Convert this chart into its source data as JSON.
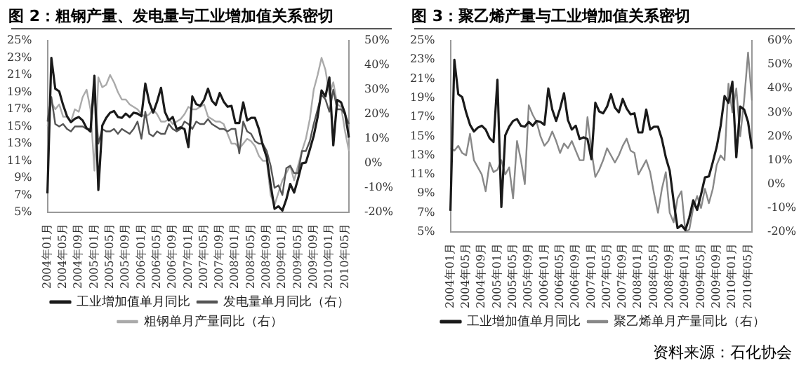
{
  "chart_data": [
    {
      "type": "line",
      "title": "图 2：粗钢产量、发电量与工业增加值关系密切",
      "legend": "bottom",
      "tick_labels": "all",
      "categories": [
        "2004年01月",
        null,
        null,
        null,
        "2004年05月",
        null,
        null,
        null,
        "2004年09月",
        null,
        null,
        null,
        "2005年01月",
        null,
        null,
        null,
        "2005年05月",
        null,
        null,
        null,
        "2005年09月",
        null,
        null,
        null,
        "2006年01月",
        null,
        null,
        null,
        "2006年05月",
        null,
        null,
        null,
        "2006年09月",
        null,
        null,
        null,
        "2007年01月",
        null,
        null,
        null,
        "2007年05月",
        null,
        null,
        null,
        "2007年09月",
        null,
        null,
        null,
        "2008年01月",
        null,
        null,
        null,
        "2008年05月",
        null,
        null,
        null,
        "2008年09月",
        null,
        null,
        null,
        "2009年01月",
        null,
        null,
        null,
        "2009年05月",
        null,
        null,
        null,
        "2009年09月",
        null,
        null,
        null,
        "2010年01月",
        null,
        null,
        null,
        "2010年05月",
        null
      ],
      "ylim": [
        5,
        25
      ],
      "yticks": [
        {
          "value": 5,
          "label": "5%"
        },
        {
          "value": 7,
          "label": "7%"
        },
        {
          "value": 9,
          "label": "9%"
        },
        {
          "value": 11,
          "label": "11%"
        },
        {
          "value": 13,
          "label": "13%"
        },
        {
          "value": 15,
          "label": "15%"
        },
        {
          "value": 17,
          "label": "17%"
        },
        {
          "value": 19,
          "label": "19%"
        },
        {
          "value": 21,
          "label": "21%"
        },
        {
          "value": 23,
          "label": "23%"
        },
        {
          "value": 25,
          "label": "25%"
        }
      ],
      "y2lim": [
        -20,
        50
      ],
      "y2ticks": [
        {
          "value": -20,
          "label": "-20%"
        },
        {
          "value": -10,
          "label": "-10%"
        },
        {
          "value": 0,
          "label": "0%"
        },
        {
          "value": 10,
          "label": "10%"
        },
        {
          "value": 20,
          "label": "20%"
        },
        {
          "value": 30,
          "label": "30%"
        },
        {
          "value": 40,
          "label": "40%"
        },
        {
          "value": 50,
          "label": "50%"
        }
      ],
      "series": [
        {
          "name": "工业增加值单月同比",
          "color": "#1a1a1a",
          "values": [
            7.2,
            23,
            19.4,
            19.1,
            17.5,
            16.2,
            15.5,
            15.9,
            16.1,
            15.7,
            14.8,
            14.4,
            20.9,
            7.6,
            15.1,
            16,
            16.6,
            16.8,
            16.1,
            16,
            16.5,
            16.1,
            16.6,
            16.5,
            16.2,
            20,
            17.8,
            16.6,
            17.9,
            19.5,
            16.7,
            15.7,
            16.1,
            14.7,
            14.9,
            14.7,
            12.6,
            18.5,
            17.6,
            17.4,
            18.1,
            19.4,
            18,
            17.5,
            18.9,
            17.9,
            17.3,
            17.4,
            15.4,
            15.4,
            17.8,
            15.7,
            16,
            16,
            14.7,
            12.8,
            11.4,
            8.2,
            5.4,
            5.7,
            5.2,
            6.5,
            8.3,
            7.3,
            8.9,
            10.7,
            10.8,
            12.3,
            13.9,
            16.1,
            19.2,
            18.5,
            20.7,
            12.8,
            18.1,
            17.8,
            16.5,
            13.7
          ]
        },
        {
          "name": "发电量单月同比（右）",
          "color": "#555555",
          "axis": "y2",
          "values": [
            17,
            27,
            16,
            15,
            16,
            14,
            13,
            15,
            15,
            15,
            14,
            14,
            30,
            8,
            14,
            13,
            13,
            14,
            12,
            14,
            13,
            12,
            14,
            17,
            10,
            21,
            12,
            11,
            13,
            12,
            12,
            16,
            14,
            13,
            14,
            17,
            16,
            14,
            17,
            16,
            16,
            18,
            16,
            15,
            14,
            14,
            13,
            14,
            14,
            4,
            17,
            13,
            12,
            9,
            8,
            8,
            5,
            -1,
            -10,
            -9,
            -13,
            -2,
            -1,
            -4,
            -4,
            5,
            5,
            9,
            16,
            22,
            28,
            26,
            21,
            30,
            22,
            22,
            20,
            16
          ]
        },
        {
          "name": "粗钢单月产量同比（右）",
          "color": "#aaaaaa",
          "axis": "y2",
          "values": [
            15,
            25,
            22,
            24,
            19,
            19,
            17,
            22,
            21,
            27,
            30,
            22,
            -3,
            35,
            31,
            32,
            36,
            33,
            29,
            26,
            26,
            24,
            23,
            22,
            20,
            19,
            20,
            22,
            20,
            17,
            17,
            18,
            16,
            17,
            18,
            20,
            23,
            22,
            22,
            23,
            24,
            19,
            18,
            17,
            17,
            16,
            12,
            8,
            8,
            6,
            8,
            10,
            9,
            7,
            3,
            1,
            1,
            -13,
            -17,
            -12,
            -7,
            -4,
            -1,
            -7,
            -1,
            5,
            10,
            18,
            30,
            36,
            43,
            38,
            28,
            33,
            24,
            23,
            13,
            5
          ]
        }
      ]
    },
    {
      "type": "line",
      "title": "图 3：聚乙烯产量与工业增加值关系密切",
      "legend": "bottom",
      "tick_labels": "all",
      "annotations": [
        "资料来源：石化协会"
      ],
      "categories": [
        "2004年01月",
        null,
        null,
        null,
        "2004年05月",
        null,
        null,
        null,
        "2004年09月",
        null,
        null,
        null,
        "2005年01月",
        null,
        null,
        null,
        "2005年05月",
        null,
        null,
        null,
        "2005年09月",
        null,
        null,
        null,
        "2006年01月",
        null,
        null,
        null,
        "2006年05月",
        null,
        null,
        null,
        "2006年09月",
        null,
        null,
        null,
        "2007年01月",
        null,
        null,
        null,
        "2007年05月",
        null,
        null,
        null,
        "2007年09月",
        null,
        null,
        null,
        "2008年01月",
        null,
        null,
        null,
        "2008年05月",
        null,
        null,
        null,
        "2008年09月",
        null,
        null,
        null,
        "2009年01月",
        null,
        null,
        null,
        "2009年05月",
        null,
        null,
        null,
        "2009年09月",
        null,
        null,
        null,
        "2010年01月",
        null,
        null,
        null,
        "2010年05月",
        null
      ],
      "ylim": [
        5,
        25
      ],
      "yticks": [
        {
          "value": 5,
          "label": "5%"
        },
        {
          "value": 7,
          "label": "7%"
        },
        {
          "value": 9,
          "label": "9%"
        },
        {
          "value": 11,
          "label": "11%"
        },
        {
          "value": 13,
          "label": "13%"
        },
        {
          "value": 15,
          "label": "15%"
        },
        {
          "value": 17,
          "label": "17%"
        },
        {
          "value": 19,
          "label": "19%"
        },
        {
          "value": 21,
          "label": "21%"
        },
        {
          "value": 23,
          "label": "23%"
        },
        {
          "value": 25,
          "label": "25%"
        }
      ],
      "y2lim": [
        -20,
        60
      ],
      "y2ticks": [
        {
          "value": -20,
          "label": "-20%"
        },
        {
          "value": -10,
          "label": "-10%"
        },
        {
          "value": 0,
          "label": "0%"
        },
        {
          "value": 10,
          "label": "10%"
        },
        {
          "value": 20,
          "label": "20%"
        },
        {
          "value": 30,
          "label": "30%"
        },
        {
          "value": 40,
          "label": "40%"
        },
        {
          "value": 50,
          "label": "50%"
        },
        {
          "value": 60,
          "label": "60%"
        }
      ],
      "series": [
        {
          "name": "工业增加值单月同比",
          "color": "#1a1a1a",
          "values": [
            7.2,
            23,
            19.4,
            19.1,
            17.5,
            16.2,
            15.5,
            15.9,
            16.1,
            15.7,
            14.8,
            14.4,
            20.9,
            7.6,
            15.1,
            16,
            16.6,
            16.8,
            16.1,
            16,
            16.5,
            16.1,
            16.6,
            16.5,
            16.2,
            20,
            17.8,
            16.6,
            17.9,
            19.5,
            16.7,
            15.7,
            16.1,
            14.7,
            14.9,
            14.7,
            12.6,
            18.5,
            17.6,
            17.4,
            18.1,
            19.4,
            18,
            17.5,
            18.9,
            17.9,
            17.3,
            17.4,
            15.4,
            15.4,
            17.8,
            15.7,
            16,
            16,
            14.7,
            12.8,
            11.4,
            8.2,
            5.4,
            5.7,
            5.2,
            6.5,
            8.3,
            7.3,
            8.9,
            10.7,
            10.8,
            12.3,
            13.9,
            16.1,
            19.2,
            18.5,
            20.7,
            12.8,
            18.1,
            17.8,
            16.5,
            13.7
          ]
        },
        {
          "name": "聚乙烯单月产量同比（右）",
          "color": "#888888",
          "axis": "y2",
          "values": [
            15,
            14,
            16,
            13,
            12,
            21,
            10,
            7,
            4,
            -3,
            9,
            5,
            6,
            10,
            4,
            7,
            -6,
            18,
            10,
            0,
            33,
            29,
            26,
            20,
            16,
            18,
            22,
            18,
            13,
            17,
            15,
            18,
            14,
            10,
            10,
            28,
            14,
            3,
            6,
            10,
            15,
            12,
            9,
            12,
            16,
            19,
            14,
            13,
            4,
            7,
            10,
            5,
            -4,
            -12,
            -2,
            5,
            -12,
            -16,
            -6,
            -3,
            -20,
            -19,
            -10,
            -5,
            -10,
            -2,
            -8,
            -2,
            8,
            12,
            10,
            42,
            30,
            40,
            20,
            35,
            55,
            35
          ]
        }
      ]
    }
  ]
}
